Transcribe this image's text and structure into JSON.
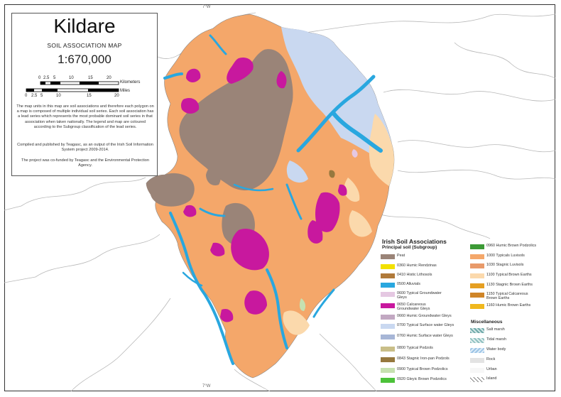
{
  "map": {
    "title": "Kildare",
    "subtitle": "SOIL ASSOCIATION MAP",
    "scale": "1:670,000",
    "km_ticks": [
      "0",
      "2.5",
      "5",
      "10",
      "15",
      "20"
    ],
    "km_label": "Kilometers",
    "mile_ticks": [
      "0",
      "2.5",
      "5",
      "10",
      "15",
      "20"
    ],
    "mile_label": "Miles",
    "graticule_top": "7°W",
    "graticule_bottom": "7°W",
    "description": "The map units in this map are soil associations and therefore each polygon on a map is composed of multiple individual soil series. Each soil association has a lead series which represents the most probable dominant soil series in that association when taken nationally. The legend and map are coloured according to the Subgroup classification of the lead series.",
    "credits": "Compiled and published by Teagasc, as an output of the Irish Soil Information System project 2009-2014.",
    "funding": "The project was co-funded by Teagasc and the Environmental Protection Agency."
  },
  "legend": {
    "title": "Irish Soil Associations",
    "subtitle": "Principal soil (Subgroup)",
    "col1": [
      {
        "label": "Peat",
        "color": "#9a8478"
      },
      {
        "label": "0360  Humic Rendzinas",
        "color": "#f2e100"
      },
      {
        "label": "0410  Histic Lithosols",
        "color": "#b07a3a"
      },
      {
        "label": "0500  Alluvials",
        "color": "#29a7df"
      },
      {
        "label": "0600  Typical Groundwater Gleys",
        "color": "#e5c8e2"
      },
      {
        "label": "0650  Calcareous Groundwater Gleys",
        "color": "#c8189e"
      },
      {
        "label": "0660  Humic Groundwater Gleys",
        "color": "#c2a8c2"
      },
      {
        "label": "0700  Typical Surface water Gleys",
        "color": "#c9d8f0"
      },
      {
        "label": "0760  Humic Surface water Gleys",
        "color": "#a7b6d6"
      },
      {
        "label": "0800  Typical Podzols",
        "color": "#c9be88"
      },
      {
        "label": "0843  Stagnic Iron-pan Podzols",
        "color": "#96783e"
      },
      {
        "label": "0900  Typical Brown Podzolics",
        "color": "#c6e1b0"
      },
      {
        "label": "0920  Gleyic Brown Podzolics",
        "color": "#4cc23a"
      }
    ],
    "col2": [
      {
        "label": "0960  Humic Brown Podzolics",
        "color": "#3c9a36"
      },
      {
        "label": "1000  Typicals Luvisols",
        "color": "#f4a76a"
      },
      {
        "label": "1030  Stagnic Luvisols",
        "color": "#e89a6a"
      },
      {
        "label": "1100  Typical Brown Earths",
        "color": "#fbd9ac"
      },
      {
        "label": "1130  Stagnic Brown Earths",
        "color": "#e59f22"
      },
      {
        "label": "1150  Typical Calcareous Brown Earths",
        "color": "#cf8528"
      },
      {
        "label": "1160  Humic Brown Earths",
        "color": "#f0b81e"
      }
    ],
    "misc_title": "Miscellaneous",
    "misc": [
      {
        "label": "Salt marsh",
        "color": "#6fa9a9"
      },
      {
        "label": "Tidal marsh",
        "color": "#8fc0c0"
      },
      {
        "label": "Water body",
        "color": "#9cc4e6"
      },
      {
        "label": "Rock",
        "color": "#e3e3e3"
      },
      {
        "label": "Urban",
        "color": "#f7f7f7"
      },
      {
        "label": "Island",
        "color": "#ffffff"
      }
    ]
  }
}
